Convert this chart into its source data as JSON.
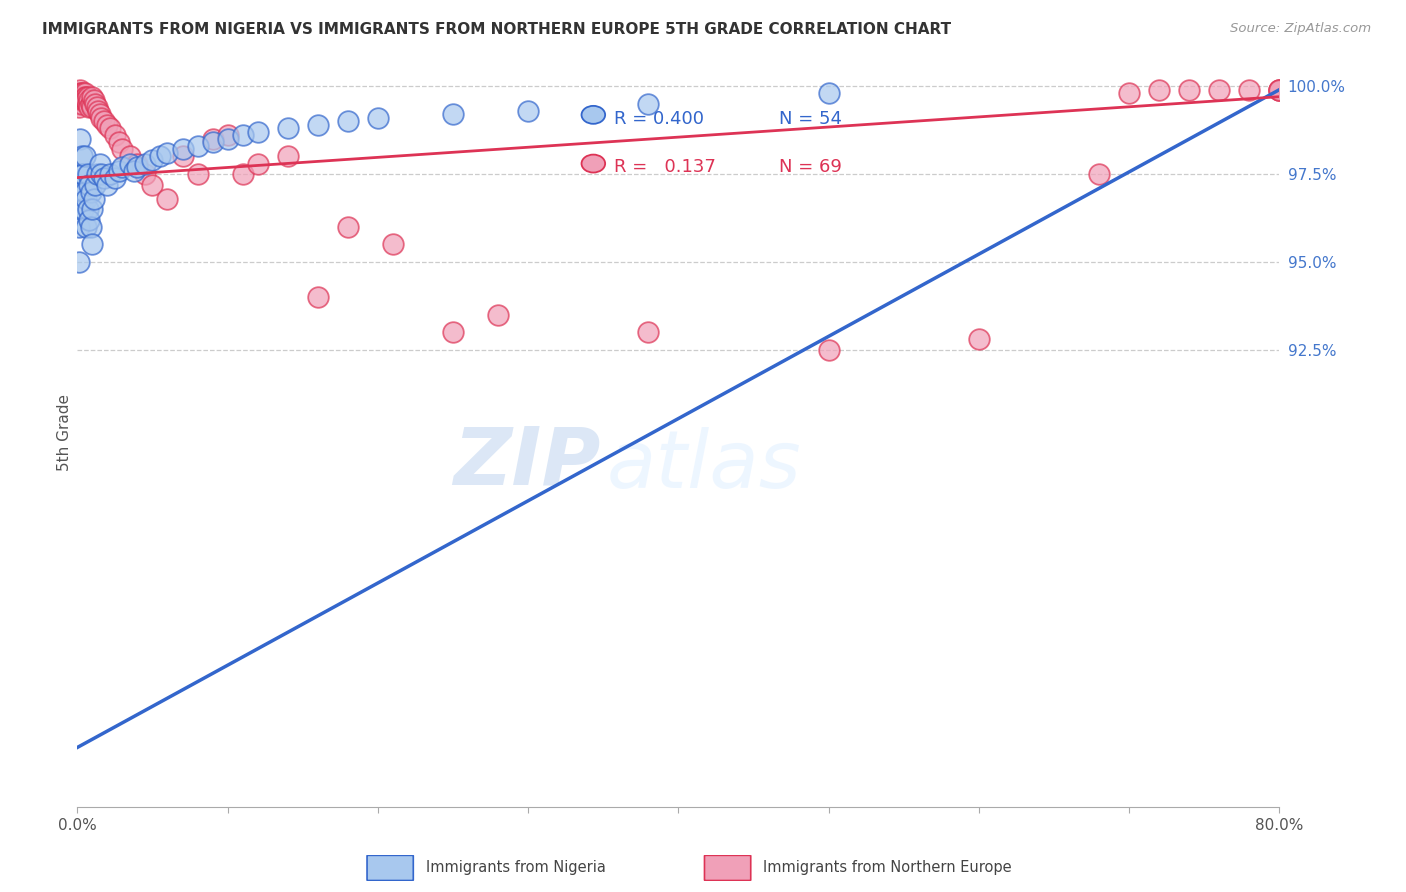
{
  "title": "IMMIGRANTS FROM NIGERIA VS IMMIGRANTS FROM NORTHERN EUROPE 5TH GRADE CORRELATION CHART",
  "source": "Source: ZipAtlas.com",
  "ylabel": "5th Grade",
  "xlim": [
    0.0,
    0.8
  ],
  "ylim": [
    0.795,
    1.008
  ],
  "yticks_right": [
    1.0,
    0.975,
    0.95,
    0.925
  ],
  "ytick_labels_right": [
    "100.0%",
    "97.5%",
    "95.0%",
    "92.5%"
  ],
  "nigeria_R": 0.4,
  "nigeria_N": 54,
  "northern_europe_R": 0.137,
  "northern_europe_N": 69,
  "blue_color": "#A8C8EE",
  "pink_color": "#F0A0B8",
  "blue_line_color": "#3366CC",
  "pink_line_color": "#DD3355",
  "blue_label": "Immigrants from Nigeria",
  "pink_label": "Immigrants from Northern Europe",
  "watermark_zip": "ZIP",
  "watermark_atlas": "atlas",
  "nigeria_x": [
    0.001,
    0.001,
    0.001,
    0.002,
    0.002,
    0.002,
    0.003,
    0.003,
    0.004,
    0.004,
    0.005,
    0.005,
    0.006,
    0.006,
    0.007,
    0.007,
    0.008,
    0.008,
    0.009,
    0.009,
    0.01,
    0.01,
    0.011,
    0.012,
    0.013,
    0.015,
    0.016,
    0.018,
    0.02,
    0.022,
    0.025,
    0.028,
    0.03,
    0.035,
    0.038,
    0.04,
    0.045,
    0.05,
    0.055,
    0.06,
    0.07,
    0.08,
    0.09,
    0.1,
    0.11,
    0.12,
    0.14,
    0.16,
    0.18,
    0.2,
    0.25,
    0.3,
    0.38,
    0.5
  ],
  "nigeria_y": [
    0.97,
    0.96,
    0.95,
    0.985,
    0.975,
    0.965,
    0.98,
    0.97,
    0.975,
    0.965,
    0.98,
    0.97,
    0.968,
    0.96,
    0.975,
    0.965,
    0.972,
    0.962,
    0.97,
    0.96,
    0.965,
    0.955,
    0.968,
    0.972,
    0.975,
    0.978,
    0.975,
    0.974,
    0.972,
    0.975,
    0.974,
    0.976,
    0.977,
    0.978,
    0.976,
    0.977,
    0.978,
    0.979,
    0.98,
    0.981,
    0.982,
    0.983,
    0.984,
    0.985,
    0.986,
    0.987,
    0.988,
    0.989,
    0.99,
    0.991,
    0.992,
    0.993,
    0.995,
    0.998
  ],
  "northern_europe_x": [
    0.001,
    0.001,
    0.001,
    0.001,
    0.001,
    0.002,
    0.002,
    0.002,
    0.002,
    0.003,
    0.003,
    0.003,
    0.003,
    0.004,
    0.004,
    0.004,
    0.005,
    0.005,
    0.005,
    0.006,
    0.006,
    0.007,
    0.007,
    0.008,
    0.008,
    0.009,
    0.01,
    0.01,
    0.011,
    0.012,
    0.013,
    0.014,
    0.015,
    0.016,
    0.018,
    0.02,
    0.022,
    0.025,
    0.028,
    0.03,
    0.035,
    0.04,
    0.045,
    0.05,
    0.06,
    0.07,
    0.08,
    0.09,
    0.1,
    0.11,
    0.12,
    0.14,
    0.16,
    0.18,
    0.21,
    0.25,
    0.28,
    0.38,
    0.5,
    0.6,
    0.68,
    0.7,
    0.72,
    0.74,
    0.76,
    0.78,
    0.8,
    0.8,
    0.8
  ],
  "northern_europe_y": [
    0.998,
    0.997,
    0.996,
    0.995,
    0.994,
    0.999,
    0.998,
    0.997,
    0.996,
    0.998,
    0.997,
    0.996,
    0.995,
    0.998,
    0.997,
    0.996,
    0.998,
    0.997,
    0.996,
    0.997,
    0.996,
    0.997,
    0.995,
    0.996,
    0.994,
    0.995,
    0.997,
    0.994,
    0.996,
    0.995,
    0.994,
    0.993,
    0.992,
    0.991,
    0.99,
    0.989,
    0.988,
    0.986,
    0.984,
    0.982,
    0.98,
    0.978,
    0.975,
    0.972,
    0.968,
    0.98,
    0.975,
    0.985,
    0.986,
    0.975,
    0.978,
    0.98,
    0.94,
    0.96,
    0.955,
    0.93,
    0.935,
    0.93,
    0.925,
    0.928,
    0.975,
    0.998,
    0.999,
    0.999,
    0.999,
    0.999,
    0.999,
    0.999,
    0.999
  ],
  "blue_trendline_x": [
    0.0,
    0.8
  ],
  "blue_trendline_y": [
    0.812,
    0.999
  ],
  "pink_trendline_x": [
    0.0,
    0.8
  ],
  "pink_trendline_y": [
    0.974,
    0.997
  ]
}
